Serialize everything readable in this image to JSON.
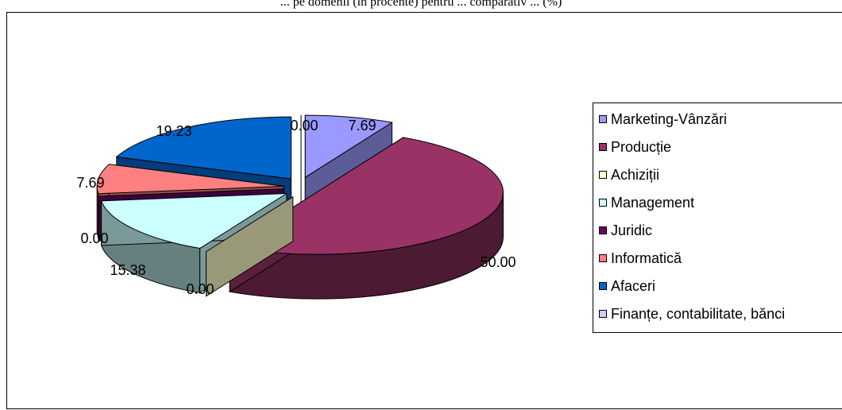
{
  "caption": "... pe domenii (în procente) pentru ... comparativ ... (%)",
  "chart_data": {
    "type": "pie",
    "title": "",
    "categories": [
      "Marketing-Vânzări",
      "Producție",
      "Achiziții",
      "Management",
      "Juridic",
      "Informatică",
      "Afaceri",
      "Finanțe, contabilitate, bănci"
    ],
    "values": [
      7.69,
      50.0,
      0.0,
      15.38,
      0.0,
      7.69,
      19.23,
      0.0
    ],
    "labels": [
      "7.69",
      "50.00",
      "0.00",
      "15.38",
      "0.00",
      "7.69",
      "19.23",
      "0.00"
    ],
    "colors": [
      "#9999FF",
      "#993366",
      "#FFFFCC",
      "#CCFFFF",
      "#660066",
      "#FF8080",
      "#0066CC",
      "#CCCCFF"
    ],
    "legend_position": "right",
    "exploded": true,
    "three_d": true
  }
}
